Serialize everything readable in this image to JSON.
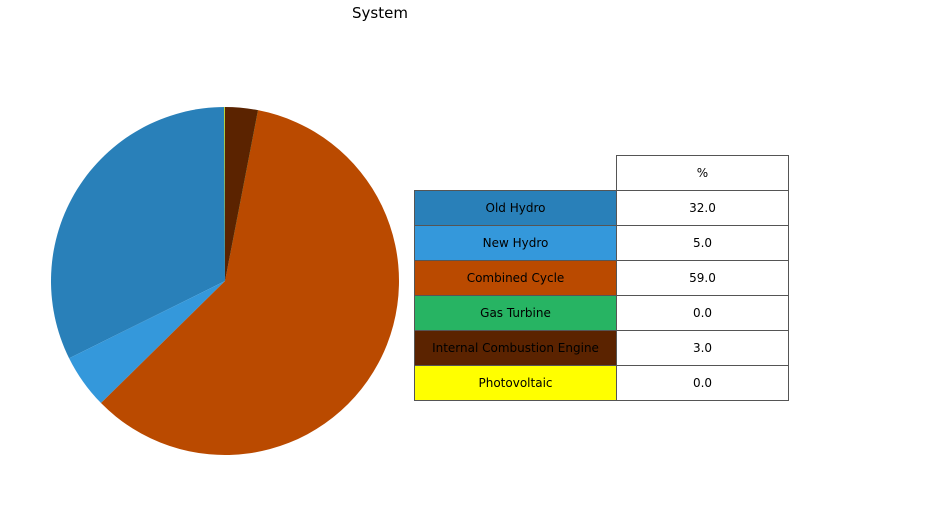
{
  "chart_data": {
    "type": "pie",
    "title": "System",
    "table_header": "%",
    "categories": [
      "Old Hydro",
      "New Hydro",
      "Combined Cycle",
      "Gas Turbine",
      "Internal Combustion Engine",
      "Photovoltaic"
    ],
    "values": [
      32.0,
      5.0,
      59.0,
      0.0,
      3.0,
      0.0
    ],
    "value_labels": [
      "32.0",
      "5.0",
      "59.0",
      "0.0",
      "3.0",
      "0.0"
    ],
    "colors": [
      "#2980b9",
      "#3498db",
      "#ba4a00",
      "#27b463",
      "#5b2300",
      "#ffff00"
    ],
    "start_angle_deg": 90,
    "direction": "counterclockwise"
  }
}
